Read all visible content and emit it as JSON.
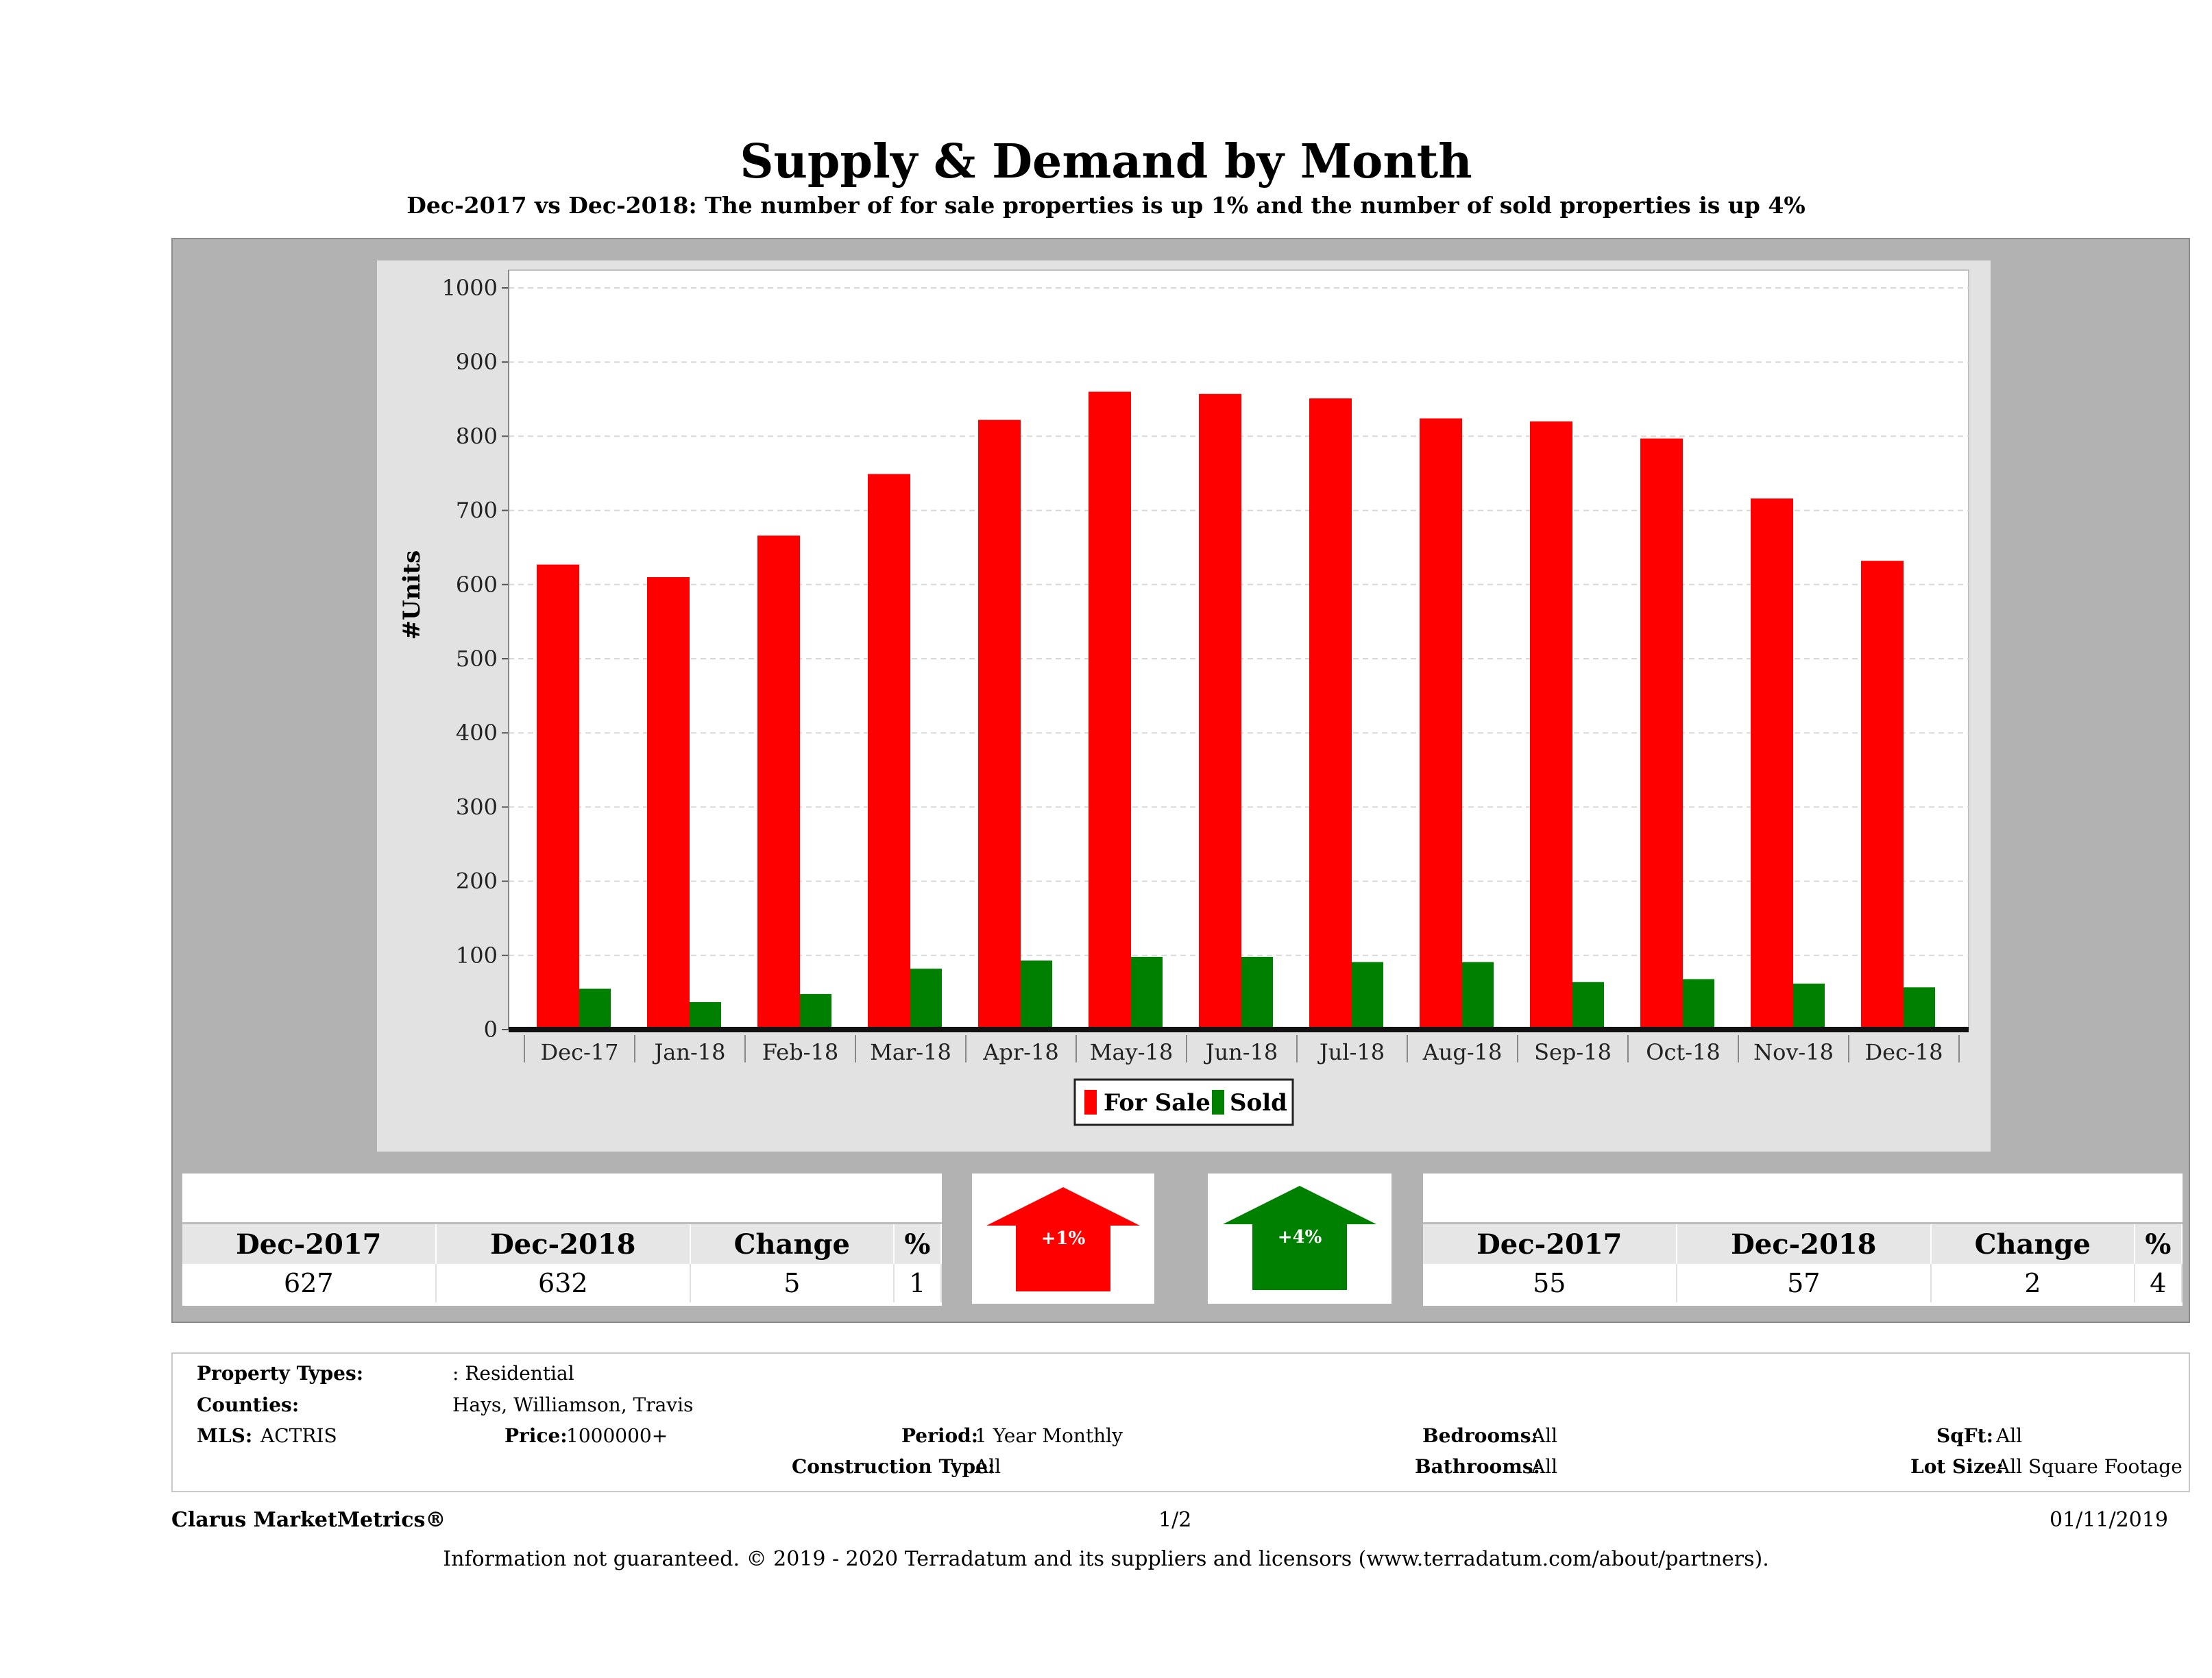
{
  "title": "Supply & Demand by Month",
  "subtitle": "Dec-2017 vs Dec-2018: The number of for sale properties is up 1% and the number of sold properties is up 4%",
  "colors": {
    "for_sale": "#ff0000",
    "sold": "#008000",
    "panel": "#b2b2b2",
    "chart_bg": "#e2e2e2"
  },
  "chart_data": {
    "type": "bar",
    "categories": [
      "Dec-17",
      "Jan-18",
      "Feb-18",
      "Mar-18",
      "Apr-18",
      "May-18",
      "Jun-18",
      "Jul-18",
      "Aug-18",
      "Sep-18",
      "Oct-18",
      "Nov-18",
      "Dec-18"
    ],
    "series": [
      {
        "name": "For Sale",
        "color": "#ff0000",
        "values": [
          627,
          610,
          666,
          749,
          822,
          860,
          857,
          851,
          824,
          820,
          797,
          716,
          632
        ]
      },
      {
        "name": "Sold",
        "color": "#008000",
        "values": [
          55,
          37,
          48,
          82,
          93,
          98,
          98,
          91,
          91,
          64,
          68,
          62,
          57
        ]
      }
    ],
    "ylabel": "#Units",
    "ylim": [
      0,
      1000
    ],
    "yticks": [
      0,
      100,
      200,
      300,
      400,
      500,
      600,
      700,
      800,
      900,
      1000
    ],
    "grid": true,
    "legend": "bottom-center"
  },
  "for_sale_stats": {
    "headers": [
      "Dec-2017",
      "Dec-2018",
      "Change",
      "%"
    ],
    "values": [
      "627",
      "632",
      "5",
      "1"
    ]
  },
  "sold_stats": {
    "headers": [
      "Dec-2017",
      "Dec-2018",
      "Change",
      "%"
    ],
    "values": [
      "55",
      "57",
      "2",
      "4"
    ]
  },
  "arrows": {
    "for_sale": {
      "label": "+1%",
      "color": "#ff0000",
      "direction": "up"
    },
    "sold": {
      "label": "+4%",
      "color": "#008000",
      "direction": "up"
    }
  },
  "criteria": {
    "property_types_label": "Property Types:",
    "property_types_value": ": Residential",
    "counties_label": "Counties:",
    "counties_value": "Hays, Williamson, Travis",
    "mls_label": "MLS:",
    "mls_value": "ACTRIS",
    "price_label": "Price:",
    "price_value": "1000000+",
    "period_label": "Period:",
    "period_value": "1 Year Monthly",
    "construction_label": "Construction Type:",
    "construction_value": "All",
    "bedrooms_label": "Bedrooms:",
    "bedrooms_value": "All",
    "bathrooms_label": "Bathrooms:",
    "bathrooms_value": "All",
    "sqft_label": "SqFt:",
    "sqft_value": "All",
    "lotsize_label": "Lot Size:",
    "lotsize_value": "All Square Footage"
  },
  "footer": {
    "brand": "Clarus MarketMetrics®",
    "page": "1/2",
    "date": "01/11/2019",
    "disclaimer": "Information not guaranteed. © 2019 - 2020 Terradatum and its suppliers and licensors (www.terradatum.com/about/partners)."
  }
}
